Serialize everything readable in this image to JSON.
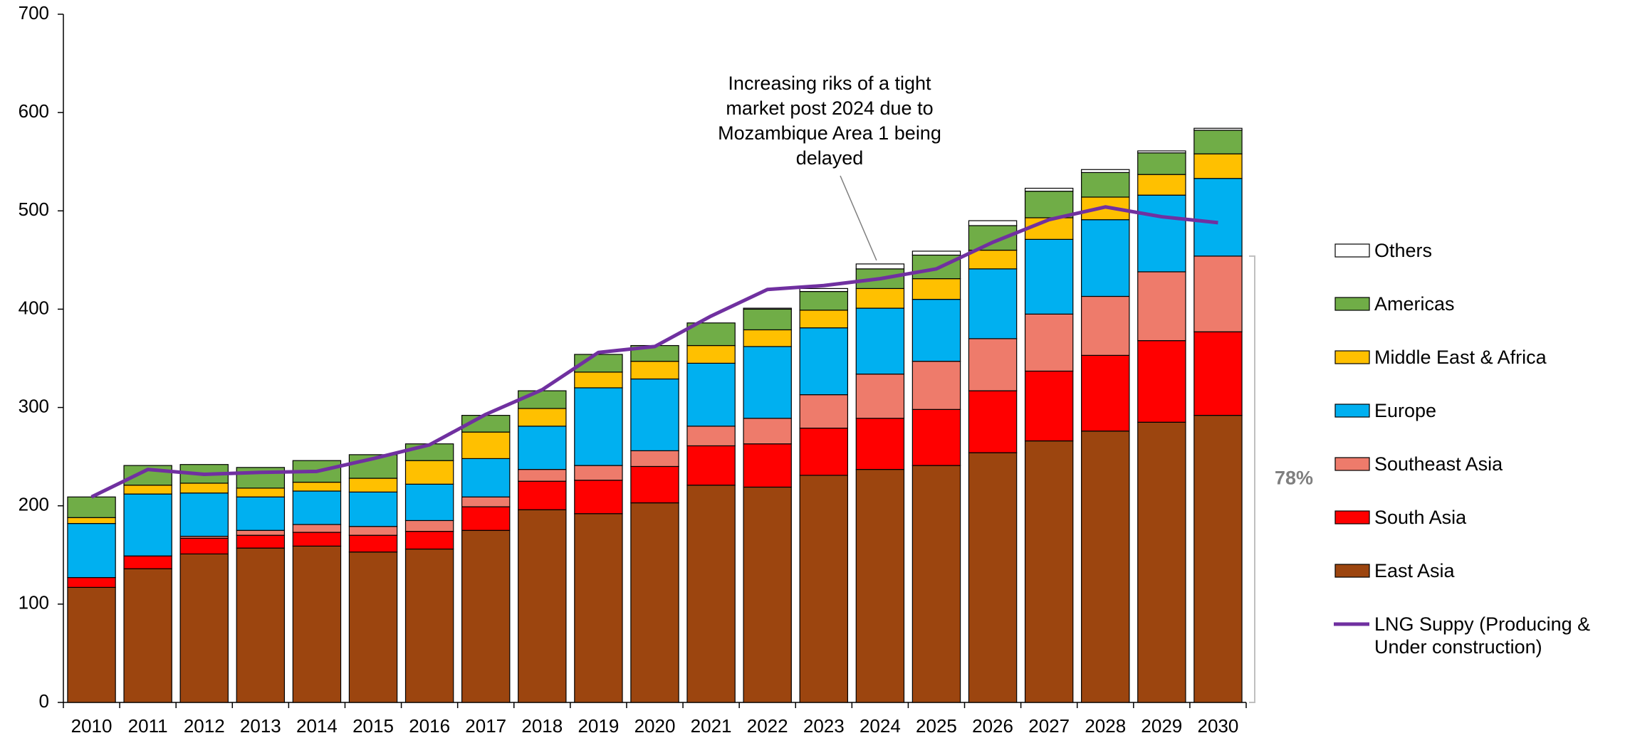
{
  "chart_data": {
    "type": "bar",
    "stacked": true,
    "categories": [
      "2010",
      "2011",
      "2012",
      "2013",
      "2014",
      "2015",
      "2016",
      "2017",
      "2018",
      "2019",
      "2020",
      "2021",
      "2022",
      "2023",
      "2024",
      "2025",
      "2026",
      "2027",
      "2028",
      "2029",
      "2030"
    ],
    "series": [
      {
        "name": "East Asia",
        "color": "#9c450f",
        "values": [
          117,
          136,
          151,
          157,
          159,
          153,
          156,
          175,
          196,
          192,
          203,
          221,
          219,
          231,
          237,
          241,
          254,
          266,
          276,
          285,
          292
        ]
      },
      {
        "name": "South Asia",
        "color": "#ff0000",
        "values": [
          10,
          13,
          16,
          13,
          14,
          17,
          18,
          24,
          29,
          34,
          37,
          40,
          44,
          48,
          52,
          57,
          63,
          71,
          77,
          83,
          85
        ]
      },
      {
        "name": "Southeast Asia",
        "color": "#ee7b6b",
        "values": [
          0,
          0,
          2,
          5,
          8,
          9,
          11,
          10,
          12,
          15,
          16,
          20,
          26,
          34,
          45,
          49,
          53,
          58,
          60,
          70,
          77
        ]
      },
      {
        "name": "Europe",
        "color": "#00b0f0",
        "values": [
          55,
          63,
          44,
          34,
          34,
          35,
          37,
          39,
          44,
          79,
          73,
          64,
          73,
          68,
          67,
          63,
          71,
          76,
          78,
          78,
          79
        ]
      },
      {
        "name": "Middle East & Africa",
        "color": "#ffc000",
        "values": [
          6,
          9,
          10,
          9,
          9,
          14,
          24,
          27,
          18,
          16,
          18,
          18,
          17,
          18,
          20,
          21,
          19,
          22,
          23,
          21,
          25
        ]
      },
      {
        "name": "Americas",
        "color": "#70ad47",
        "values": [
          21,
          20,
          19,
          21,
          22,
          24,
          17,
          17,
          18,
          18,
          16,
          23,
          21,
          19,
          20,
          24,
          25,
          27,
          25,
          22,
          24
        ]
      },
      {
        "name": "Others",
        "color": "#ffffff",
        "values": [
          0,
          0,
          0,
          0,
          0,
          0,
          0,
          0,
          0,
          0,
          0,
          0,
          1,
          3,
          5,
          4,
          5,
          3,
          3,
          2,
          2
        ]
      },
      {
        "name": "LNG Suppy (Producing & Under construction)",
        "type": "line",
        "color": "#7030a0",
        "values": [
          209,
          237,
          232,
          234,
          235,
          248,
          262,
          293,
          318,
          356,
          362,
          393,
          420,
          424,
          431,
          441,
          468,
          491,
          504,
          494,
          488
        ]
      }
    ],
    "ylim": [
      0,
      700
    ],
    "yticks": [
      0,
      100,
      200,
      300,
      400,
      500,
      600,
      700
    ],
    "annotations": [
      "Increasing riks of a tight market post 2024 due to Mozambique Area 1 being delayed",
      "78%"
    ],
    "legend": "right"
  }
}
